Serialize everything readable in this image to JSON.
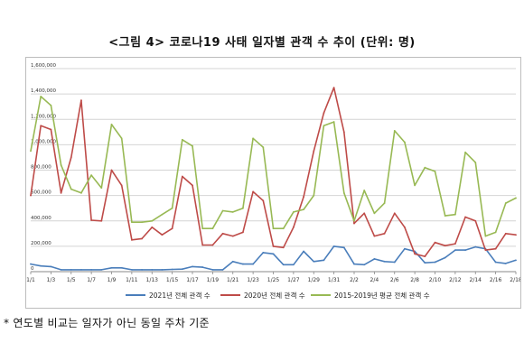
{
  "title": "<그림 4> 코로나19 사태 일자별 관객 수 추이 (단위: 명)",
  "footnote": "* 연도별 비교는 일자가 아닌 동일 주차 기준",
  "chart_data": {
    "type": "line",
    "title": "",
    "xlabel": "",
    "ylabel": "",
    "ylim": [
      0,
      1600000
    ],
    "yticks": [
      0,
      200000,
      400000,
      600000,
      800000,
      1000000,
      1200000,
      1400000,
      1600000
    ],
    "ytick_labels": [
      "0",
      "200,000",
      "400,000",
      "600,000",
      "800,000",
      "1,000,000",
      "1,200,000",
      "1,400,000",
      "1,600,000"
    ],
    "x": [
      "1/1",
      "1/2",
      "1/3",
      "1/4",
      "1/5",
      "1/6",
      "1/7",
      "1/8",
      "1/9",
      "1/10",
      "1/11",
      "1/12",
      "1/13",
      "1/14",
      "1/15",
      "1/16",
      "1/17",
      "1/18",
      "1/19",
      "1/20",
      "1/21",
      "1/22",
      "1/23",
      "1/24",
      "1/25",
      "1/26",
      "1/27",
      "1/28",
      "1/29",
      "1/30",
      "1/31",
      "2/1",
      "2/2",
      "2/3",
      "2/4",
      "2/5",
      "2/6",
      "2/7",
      "2/8",
      "2/9",
      "2/10",
      "2/11",
      "2/12",
      "2/13",
      "2/14",
      "2/15",
      "2/16",
      "2/17",
      "2/18"
    ],
    "xtick_labels": [
      "1/1",
      "1/3",
      "1/5",
      "1/7",
      "1/9",
      "1/11",
      "1/13",
      "1/15",
      "1/17",
      "1/19",
      "1/21",
      "1/23",
      "1/25",
      "1/27",
      "1/29",
      "1/31",
      "2/2",
      "2/4",
      "2/6",
      "2/8",
      "2/10",
      "2/12",
      "2/14",
      "2/16",
      "2/18"
    ],
    "grid": "horizontal",
    "legend": "bottom",
    "series": [
      {
        "name": "2021년 전체 관객 수",
        "color": "#4a7ebb",
        "values": [
          60000,
          45000,
          40000,
          15000,
          15000,
          15000,
          15000,
          15000,
          30000,
          30000,
          15000,
          15000,
          15000,
          15000,
          18000,
          20000,
          40000,
          35000,
          15000,
          15000,
          80000,
          60000,
          60000,
          150000,
          140000,
          55000,
          55000,
          160000,
          80000,
          90000,
          200000,
          190000,
          60000,
          55000,
          100000,
          80000,
          75000,
          180000,
          160000,
          70000,
          75000,
          110000,
          170000,
          170000,
          195000,
          180000,
          75000,
          65000,
          90000
        ]
      },
      {
        "name": "2020년 전체 관객 수",
        "color": "#be4b48",
        "values": [
          600000,
          1150000,
          1120000,
          620000,
          900000,
          1350000,
          405000,
          400000,
          800000,
          680000,
          250000,
          260000,
          350000,
          290000,
          340000,
          750000,
          680000,
          210000,
          210000,
          300000,
          280000,
          310000,
          630000,
          560000,
          200000,
          190000,
          350000,
          590000,
          950000,
          1250000,
          1450000,
          1100000,
          380000,
          460000,
          280000,
          300000,
          460000,
          350000,
          140000,
          120000,
          230000,
          205000,
          220000,
          430000,
          400000,
          170000,
          180000,
          300000,
          290000
        ]
      },
      {
        "name": "2015-2019년 평균 전체 관객 수",
        "color": "#98b954",
        "values": [
          950000,
          1380000,
          1310000,
          840000,
          650000,
          620000,
          760000,
          660000,
          1160000,
          1050000,
          390000,
          390000,
          400000,
          450000,
          500000,
          1040000,
          990000,
          340000,
          340000,
          480000,
          470000,
          500000,
          1050000,
          980000,
          340000,
          340000,
          470000,
          490000,
          600000,
          1150000,
          1180000,
          620000,
          400000,
          640000,
          460000,
          540000,
          1110000,
          1020000,
          680000,
          820000,
          790000,
          440000,
          450000,
          940000,
          860000,
          280000,
          310000,
          540000,
          580000
        ]
      }
    ]
  }
}
